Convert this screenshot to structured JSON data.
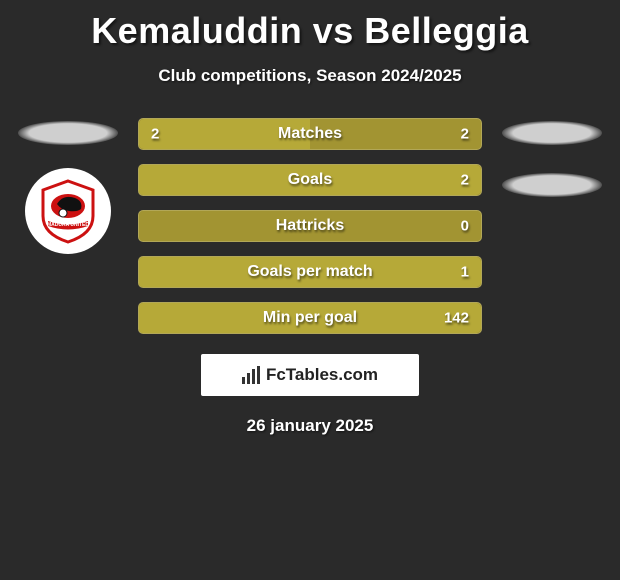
{
  "title": "Kemaluddin vs Belleggia",
  "subtitle": "Club competitions, Season 2024/2025",
  "bars": [
    {
      "label": "Matches",
      "left": "2",
      "right": "2",
      "left_fill_pct": 50,
      "right_fill_pct": 0
    },
    {
      "label": "Goals",
      "left": "",
      "right": "2",
      "left_fill_pct": 0,
      "right_fill_pct": 100
    },
    {
      "label": "Hattricks",
      "left": "",
      "right": "0",
      "left_fill_pct": 0,
      "right_fill_pct": 0
    },
    {
      "label": "Goals per match",
      "left": "",
      "right": "1",
      "left_fill_pct": 0,
      "right_fill_pct": 100
    },
    {
      "label": "Min per goal",
      "left": "",
      "right": "142",
      "left_fill_pct": 0,
      "right_fill_pct": 100
    }
  ],
  "footer_brand": "FcTables.com",
  "date": "26 january 2025",
  "colors": {
    "bg": "#2a2a2a",
    "bar_base": "#a29432",
    "bar_fill": "#b6a938",
    "text": "#ffffff"
  }
}
